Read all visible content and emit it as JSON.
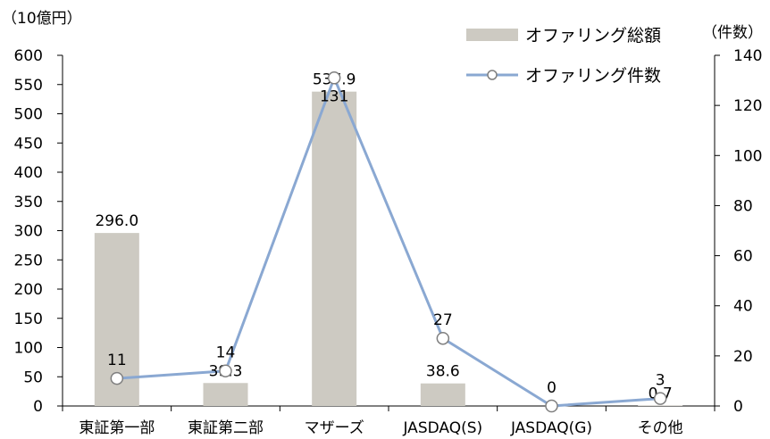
{
  "chart_data": {
    "type": "bar",
    "categories": [
      "東証第一部",
      "東証第二部",
      "マザーズ",
      "JASDAQ(S)",
      "JASDAQ(G)",
      "その他"
    ],
    "left_unit": "（10億円）",
    "right_unit": "（件数）",
    "left_ylim": [
      0,
      600
    ],
    "left_ticks": [
      "0",
      "50",
      "100",
      "150",
      "200",
      "250",
      "300",
      "350",
      "400",
      "450",
      "500",
      "550",
      "600"
    ],
    "right_ylim": [
      0,
      140
    ],
    "right_ticks": [
      "0",
      "20",
      "40",
      "60",
      "80",
      "100",
      "120",
      "140"
    ],
    "series": [
      {
        "name": "オファリング総額",
        "type": "bar",
        "axis": "left",
        "values": [
          296.0,
          39.3,
          537.9,
          38.6,
          0,
          0.7
        ],
        "labels": [
          "296.0",
          "39.3",
          "537.9",
          "38.6",
          "",
          "0.7"
        ]
      },
      {
        "name": "オファリング件数",
        "type": "line",
        "axis": "right",
        "values": [
          11,
          14,
          131,
          27,
          0,
          3
        ],
        "labels": [
          "11",
          "14",
          "131",
          "27",
          "0",
          "3"
        ]
      }
    ],
    "colors": {
      "bar": "#cdcac2",
      "line": "#8aa8d2",
      "marker_fill": "#ffffff",
      "marker_stroke": "#7f7f7f"
    },
    "legend_position": "top-right",
    "grid": false
  }
}
